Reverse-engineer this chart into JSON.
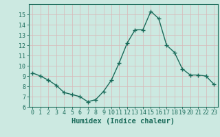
{
  "x": [
    0,
    1,
    2,
    3,
    4,
    5,
    6,
    7,
    8,
    9,
    10,
    11,
    12,
    13,
    14,
    15,
    16,
    17,
    18,
    19,
    20,
    21,
    22,
    23
  ],
  "y": [
    9.3,
    9.0,
    8.6,
    8.1,
    7.4,
    7.2,
    7.0,
    6.5,
    6.7,
    7.5,
    8.6,
    10.3,
    12.2,
    13.5,
    13.5,
    15.3,
    14.6,
    12.0,
    11.3,
    9.7,
    9.1,
    9.1,
    9.0,
    8.2
  ],
  "bg_color": "#cce9e1",
  "line_color": "#1a6b5a",
  "marker": "+",
  "marker_size": 4,
  "xlabel": "Humidex (Indice chaleur)",
  "ylim": [
    6,
    16
  ],
  "xlim": [
    -0.5,
    23.5
  ],
  "yticks": [
    6,
    7,
    8,
    9,
    10,
    11,
    12,
    13,
    14,
    15
  ],
  "xticks": [
    0,
    1,
    2,
    3,
    4,
    5,
    6,
    7,
    8,
    9,
    10,
    11,
    12,
    13,
    14,
    15,
    16,
    17,
    18,
    19,
    20,
    21,
    22,
    23
  ],
  "grid_color": "#d8b8b8",
  "font_color": "#1a6b5a",
  "tick_font_size": 6.0,
  "label_font_size": 7.5,
  "line_width": 1.0,
  "marker_color": "#1a6b5a"
}
